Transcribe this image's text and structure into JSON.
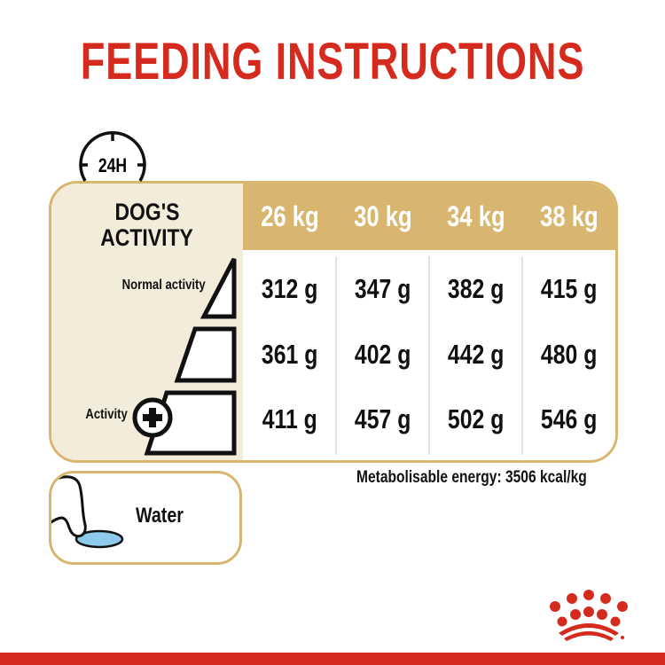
{
  "title": "FEEDING INSTRUCTIONS",
  "clock_label": "24H",
  "activity_header": {
    "line1": "DOG'S",
    "line2": "ACTIVITY"
  },
  "activity_labels": {
    "top": "Normal activity",
    "bottom": "Activity"
  },
  "columns": [
    "26 kg",
    "30 kg",
    "34 kg",
    "38 kg"
  ],
  "rows": [
    [
      "312 g",
      "347 g",
      "382 g",
      "415 g"
    ],
    [
      "361 g",
      "402 g",
      "442 g",
      "480 g"
    ],
    [
      "411 g",
      "457 g",
      "502 g",
      "546 g"
    ]
  ],
  "energy": "Metabolisable energy: 3506 kcal/kg",
  "water_label": "Water",
  "colors": {
    "brand_red": "#d52b1e",
    "gold": "#d9b66f",
    "cream": "#f4ecdb",
    "water_blue": "#8ecbea"
  },
  "icons": [
    "clock-24h-icon",
    "activity-pyramid-icon",
    "plus-circle-icon",
    "dog-paw-drinking-icon",
    "royal-canin-crown-logo"
  ]
}
